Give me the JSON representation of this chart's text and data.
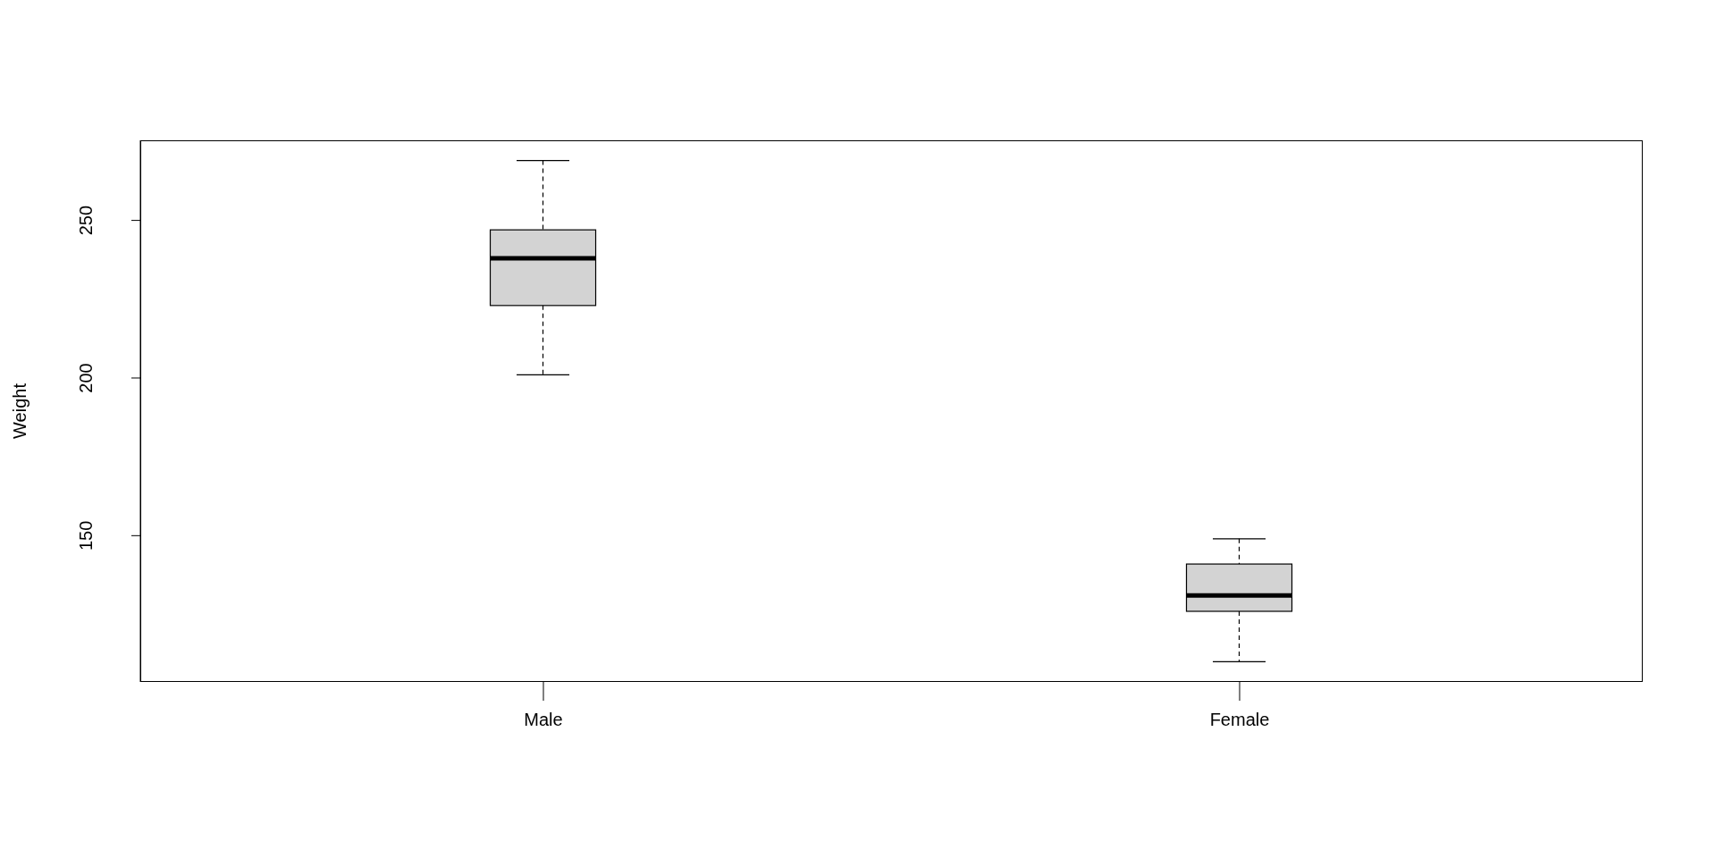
{
  "chart_data": {
    "type": "box",
    "ylabel": "Weight",
    "categories": [
      "Male",
      "Female"
    ],
    "color": "#d3d3d3",
    "boxes": [
      {
        "low": 201,
        "q1": 223,
        "median": 238,
        "q3": 247,
        "high": 269
      },
      {
        "low": 110,
        "q1": 126,
        "median": 131,
        "q3": 141,
        "high": 149
      }
    ],
    "ylim": [
      103.6,
      275.4
    ],
    "yticks": [
      150,
      200,
      250
    ]
  }
}
